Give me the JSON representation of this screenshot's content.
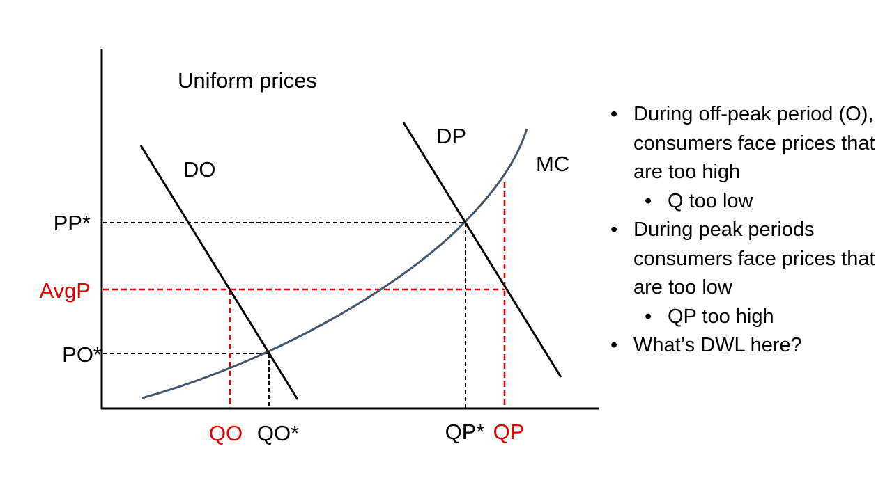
{
  "diagram": {
    "title": "Uniform prices",
    "curves": {
      "do": "DO",
      "dp": "DP",
      "mc": "MC"
    },
    "price_labels": {
      "pp_star": "PP*",
      "avgp": "AvgP",
      "po_star": "PO*"
    },
    "quantity_labels": {
      "qo": "QO",
      "qo_star": "QO*",
      "qp_star": "QP*",
      "qp": "QP"
    },
    "colors": {
      "axis": "#000000",
      "demand": "#000000",
      "mc": "#44546a",
      "optimal_guides": "#000000",
      "uniform_guides": "#e00000"
    }
  },
  "bullets": {
    "marker": "•",
    "items": [
      {
        "level": 1,
        "text": "During off-peak period (O), consumers face prices that are too high"
      },
      {
        "level": 2,
        "text": "Q too low"
      },
      {
        "level": 1,
        "text": "During peak periods consumers face prices that are too low"
      },
      {
        "level": 2,
        "text": "QP too high"
      },
      {
        "level": 1,
        "text": "What’s DWL here?"
      }
    ]
  }
}
